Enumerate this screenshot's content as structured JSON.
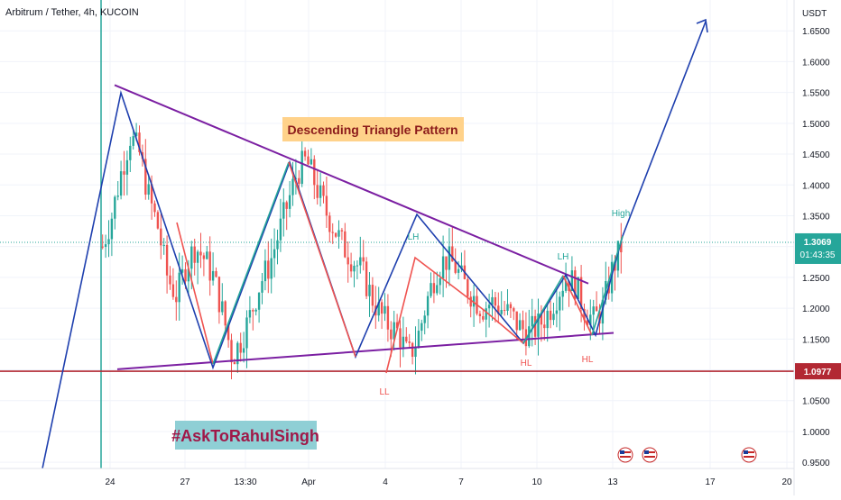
{
  "header": {
    "symbol": "Arbitrum / Tether, 4h, KUCOIN"
  },
  "axis": {
    "currency": "USDT",
    "price_ticks": [
      "1.6500",
      "1.6000",
      "1.5500",
      "1.5000",
      "1.4500",
      "1.4000",
      "1.3500",
      "1.3000",
      "1.2500",
      "1.2000",
      "1.1500",
      "1.1000",
      "1.0500",
      "1.0000",
      "0.9500"
    ],
    "time_ticks": [
      "24",
      "27",
      "13:30",
      "Apr",
      "4",
      "7",
      "10",
      "13",
      "17",
      "20"
    ]
  },
  "price_badges": {
    "current": {
      "value": "1.3069",
      "countdown": "01:43:35",
      "color": "#26a69a"
    },
    "support": {
      "value": "1.0977",
      "color": "#b22833"
    }
  },
  "annotations": {
    "pattern_title": "Descending Triangle Pattern",
    "hashtag": "#AskToRahulSingh",
    "wave_labels": [
      "LH",
      "LH",
      "High",
      "HL",
      "HL",
      "LL"
    ]
  },
  "colors": {
    "up": "#26a69a",
    "down": "#ef5350",
    "triangle": "#7b1fa2",
    "wave_blue": "#1e3fae",
    "support": "#b22833"
  },
  "chart_data": {
    "type": "candlestick",
    "title": "Arbitrum / Tether, 4h, KUCOIN",
    "y_unit": "USDT",
    "ylim": [
      0.94,
      1.7
    ],
    "x_ticks": [
      "24",
      "27",
      "13:30",
      "Apr",
      "4",
      "7",
      "10",
      "13",
      "17",
      "20"
    ],
    "current_price": 1.3069,
    "support_level": 1.0977,
    "descending_triangle": {
      "upper_line": [
        [
          0,
          1.562
        ],
        [
          1,
          1.24
        ]
      ],
      "lower_line": [
        [
          0,
          1.101
        ],
        [
          1,
          1.16
        ]
      ]
    },
    "price_path": [
      [
        0,
        1.3
      ],
      [
        0.5,
        1.35
      ],
      [
        1,
        1.42
      ],
      [
        1.5,
        1.48
      ],
      [
        2,
        1.45
      ],
      [
        2.5,
        1.38
      ],
      [
        3,
        1.33
      ],
      [
        3.5,
        1.25
      ],
      [
        4,
        1.22
      ],
      [
        4.5,
        1.27
      ],
      [
        5,
        1.3
      ],
      [
        5.5,
        1.28
      ],
      [
        6,
        1.25
      ],
      [
        6.5,
        1.19
      ],
      [
        7,
        1.12
      ],
      [
        7.5,
        1.15
      ],
      [
        8,
        1.19
      ],
      [
        8.5,
        1.24
      ],
      [
        9,
        1.27
      ],
      [
        9.5,
        1.32
      ],
      [
        10,
        1.37
      ],
      [
        10.5,
        1.42
      ],
      [
        11,
        1.44
      ],
      [
        11.5,
        1.4
      ],
      [
        12,
        1.36
      ],
      [
        12.5,
        1.33
      ],
      [
        13,
        1.3
      ],
      [
        13.5,
        1.28
      ],
      [
        14,
        1.26
      ],
      [
        14.5,
        1.22
      ],
      [
        15,
        1.19
      ],
      [
        15.5,
        1.17
      ],
      [
        16,
        1.16
      ],
      [
        16.5,
        1.12
      ],
      [
        17,
        1.15
      ],
      [
        17.5,
        1.21
      ],
      [
        18,
        1.26
      ],
      [
        18.5,
        1.28
      ],
      [
        19,
        1.27
      ],
      [
        19.5,
        1.24
      ],
      [
        20,
        1.22
      ],
      [
        20.5,
        1.2
      ],
      [
        21,
        1.21
      ],
      [
        21.5,
        1.2
      ],
      [
        22,
        1.19
      ],
      [
        22.5,
        1.17
      ],
      [
        23,
        1.16
      ],
      [
        23.5,
        1.17
      ],
      [
        24,
        1.19
      ],
      [
        24.5,
        1.22
      ],
      [
        25,
        1.25
      ],
      [
        25.5,
        1.24
      ],
      [
        26,
        1.2
      ],
      [
        26.5,
        1.18
      ],
      [
        27,
        1.2
      ],
      [
        27.5,
        1.26
      ],
      [
        28,
        1.3
      ]
    ],
    "wave_labels": [
      {
        "text": "LH",
        "x": 0.38,
        "y": 1.345,
        "color": "up"
      },
      {
        "text": "LL",
        "x": 0.32,
        "y": 1.06,
        "color": "down"
      },
      {
        "text": "HL",
        "x": 0.55,
        "y": 1.125,
        "color": "down"
      },
      {
        "text": "LH",
        "x": 0.6,
        "y": 1.27,
        "color": "up"
      },
      {
        "text": "HL",
        "x": 0.66,
        "y": 1.13,
        "color": "down"
      },
      {
        "text": "High",
        "x": 0.72,
        "y": 1.37,
        "color": "up"
      }
    ]
  }
}
